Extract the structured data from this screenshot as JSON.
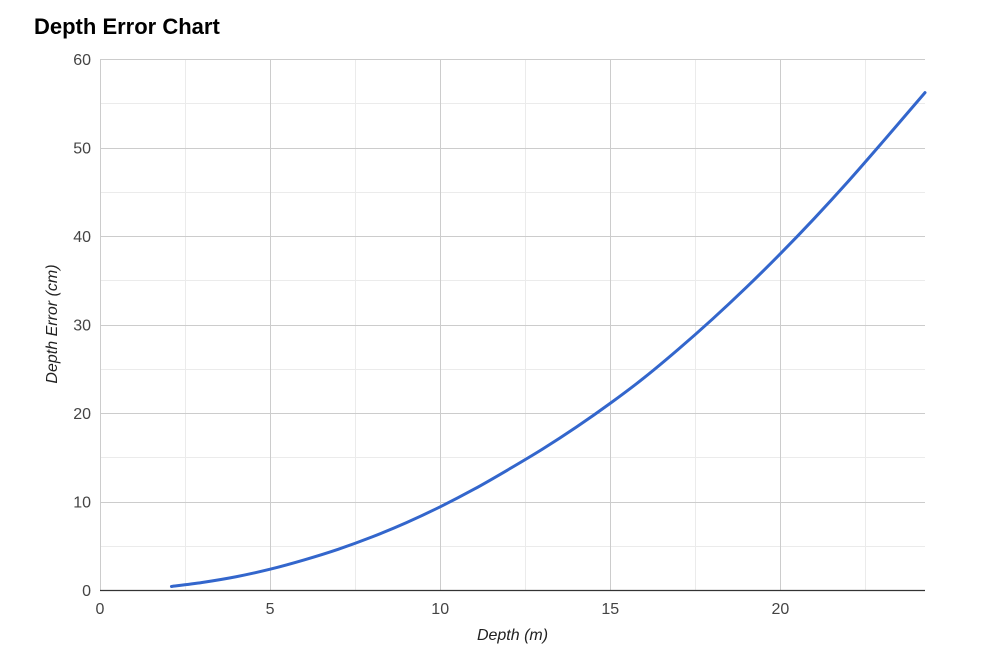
{
  "chart_data": {
    "type": "line",
    "title": "Depth Error Chart",
    "xlabel": "Depth (m)",
    "ylabel": "Depth Error (cm)",
    "xlim": [
      0,
      24.25
    ],
    "ylim": [
      0,
      60
    ],
    "x_ticks": [
      "0",
      "5",
      "10",
      "15",
      "20"
    ],
    "y_ticks": [
      "0",
      "10",
      "20",
      "30",
      "40",
      "50",
      "60"
    ],
    "x_tick_values": [
      0,
      5,
      10,
      15,
      20
    ],
    "y_tick_values": [
      0,
      10,
      20,
      30,
      40,
      50,
      60
    ],
    "x_minor_ticks": [
      2.5,
      7.5,
      12.5,
      17.5,
      22.5
    ],
    "y_minor_ticks": [
      5,
      15,
      25,
      35,
      45,
      55
    ],
    "grid": true,
    "legend": "none",
    "colors": {
      "line": "#3366cc",
      "major_grid": "#cccccc",
      "minor_grid": "#ebebeb",
      "axis": "#333333"
    },
    "series": [
      {
        "x": [
          2.1,
          3,
          4,
          5,
          6,
          7,
          8,
          9,
          10,
          11,
          12,
          13,
          14,
          15,
          16,
          17,
          18,
          19,
          20,
          21,
          22,
          23,
          24.25
        ],
        "y": [
          0.4,
          0.85,
          1.5,
          2.35,
          3.4,
          4.6,
          6.0,
          7.6,
          9.4,
          11.4,
          13.6,
          15.9,
          18.4,
          21.1,
          24.0,
          27.2,
          30.6,
          34.2,
          38.0,
          42.0,
          46.2,
          50.6,
          56.2
        ]
      }
    ]
  }
}
